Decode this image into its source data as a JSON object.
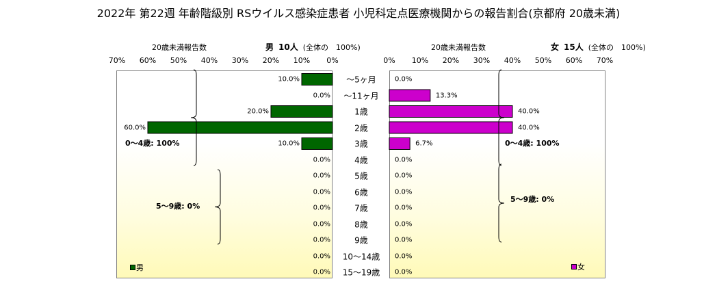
{
  "title": "2022年 第22週 年齢階級別 RSウイルス感染症患者 小児科定点医療機関からの報告割合(京都府 20歳未満)",
  "male_panel": {
    "sub_label": "20歳未満報告数",
    "sex": "男",
    "count": "10人",
    "total_note": "(全体の　100%)",
    "legend": "男",
    "group_0_4": "0～4歳: 100%",
    "group_5_9": "5～9歳: 0%"
  },
  "female_panel": {
    "sub_label": "20歳未満報告数",
    "sex": "女",
    "count": "15人",
    "total_note": "(全体の　100%)",
    "legend": "女",
    "group_0_4": "0～4歳: 100%",
    "group_5_9": "5～9歳: 0%"
  },
  "colors": {
    "male": "#006600",
    "female": "#cc00cc",
    "border": "#7f7f7f"
  },
  "chart_data": {
    "type": "bar",
    "orientation": "horizontal population pyramid",
    "categories": [
      "～5ヶ月",
      "～11ヶ月",
      "1歳",
      "2歳",
      "3歳",
      "4歳",
      "5歳",
      "6歳",
      "7歳",
      "8歳",
      "9歳",
      "10～14歳",
      "15～19歳"
    ],
    "series": [
      {
        "name": "男",
        "values": [
          10.0,
          0.0,
          20.0,
          60.0,
          10.0,
          0.0,
          0.0,
          0.0,
          0.0,
          0.0,
          0.0,
          0.0,
          0.0
        ],
        "labels": [
          "10.0%",
          "0.0%",
          "20.0%",
          "60.0%",
          "10.0%",
          "0.0%",
          "0.0%",
          "0.0%",
          "0.0%",
          "0.0%",
          "0.0%",
          "0.0%",
          "0.0%"
        ]
      },
      {
        "name": "女",
        "values": [
          0.0,
          13.3,
          40.0,
          40.0,
          6.7,
          0.0,
          0.0,
          0.0,
          0.0,
          0.0,
          0.0,
          0.0,
          0.0
        ],
        "labels": [
          "0.0%",
          "13.3%",
          "40.0%",
          "40.0%",
          "6.7%",
          "0.0%",
          "0.0%",
          "0.0%",
          "0.0%",
          "0.0%",
          "0.0%",
          "0.0%",
          "0.0%"
        ]
      }
    ],
    "xlim": [
      0,
      70
    ],
    "ticks_male": [
      "70%",
      "60%",
      "50%",
      "40%",
      "30%",
      "20%",
      "10%",
      "0%"
    ],
    "ticks_female": [
      "0%",
      "10%",
      "20%",
      "30%",
      "40%",
      "50%",
      "60%",
      "70%"
    ]
  }
}
